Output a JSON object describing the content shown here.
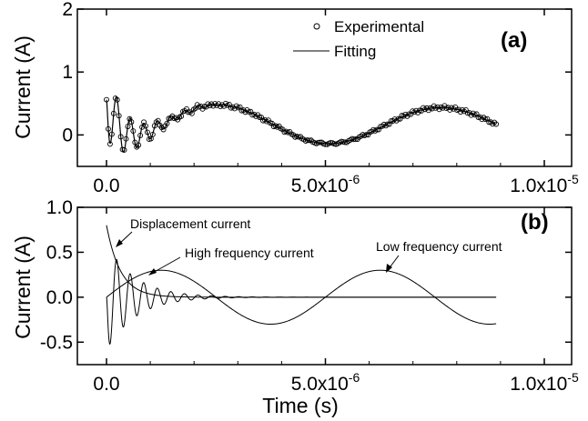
{
  "chart_data": [
    {
      "panel": "(a)",
      "type": "line",
      "ylabel": "Current (A)",
      "xlim": [
        0,
        1e-05
      ],
      "ylim": [
        -0.5,
        2.0
      ],
      "x_ticks": [
        {
          "value": 0,
          "label": "0.0"
        },
        {
          "value": 5e-06,
          "label": "5.0x10",
          "exp": "-6"
        },
        {
          "value": 1e-05,
          "label": "1.0x10",
          "exp": "-5"
        }
      ],
      "y_ticks": [
        {
          "value": 0,
          "label": "0"
        },
        {
          "value": 1,
          "label": "1"
        },
        {
          "value": 2,
          "label": "2"
        }
      ],
      "legend": {
        "position": "top-right",
        "entries": [
          "Experimental",
          "Fitting"
        ]
      },
      "series": [
        {
          "name": "Experimental",
          "style": "markers",
          "marker": "open-circle",
          "x_range": [
            0,
            8.9e-06
          ],
          "samples": 220
        },
        {
          "name": "Fitting",
          "style": "line",
          "x_range": [
            0,
            8.9e-06
          ],
          "samples": 500
        }
      ]
    },
    {
      "panel": "(b)",
      "type": "line",
      "xlabel": "Time (s)",
      "ylabel": "Current (A)",
      "xlim": [
        0,
        1e-05
      ],
      "ylim": [
        -0.75,
        1.0
      ],
      "x_ticks": [
        {
          "value": 0,
          "label": "0.0"
        },
        {
          "value": 5e-06,
          "label": "5.0x10",
          "exp": "-6"
        },
        {
          "value": 1e-05,
          "label": "1.0x10",
          "exp": "-5"
        }
      ],
      "y_ticks": [
        {
          "value": -0.5,
          "label": "-0.5"
        },
        {
          "value": 0,
          "label": "0.0"
        },
        {
          "value": 0.5,
          "label": "0.5"
        },
        {
          "value": 1.0,
          "label": "1.0"
        }
      ],
      "annotations": [
        "Displacement current",
        "High frequency current",
        "Low frequency current"
      ],
      "series": [
        {
          "name": "Displacement current",
          "x_range": [
            0,
            8.9e-06
          ]
        },
        {
          "name": "High frequency current",
          "x_range": [
            0,
            8.9e-06
          ]
        },
        {
          "name": "Low frequency current",
          "x_range": [
            0,
            8.9e-06
          ]
        }
      ]
    }
  ]
}
